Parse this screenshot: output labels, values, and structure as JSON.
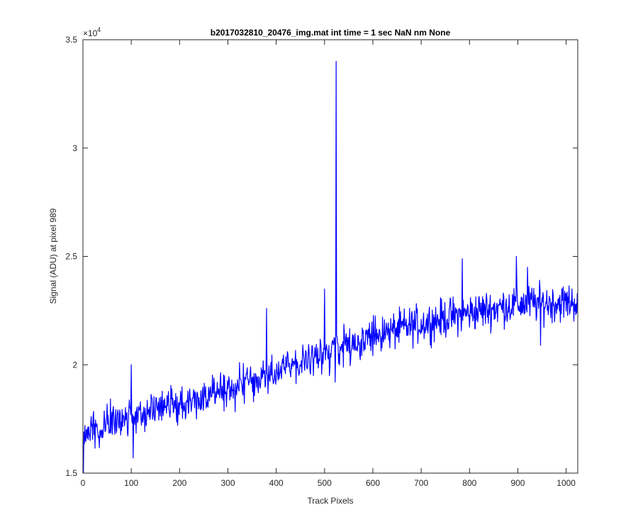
{
  "chart_data": {
    "type": "line",
    "title": "b2017032810_20476_img.mat int time = 1 sec  NaN nm None",
    "xlabel": "Track Pixels",
    "ylabel": "Signal (ADU) at pixel 989",
    "xlim": [
      0,
      1024
    ],
    "ylim": [
      15000,
      35000
    ],
    "x_ticks": [
      0,
      100,
      200,
      300,
      400,
      500,
      600,
      700,
      800,
      900,
      1000
    ],
    "y_ticks": [
      15000,
      20000,
      25000,
      30000,
      35000
    ],
    "y_tick_labels": [
      "1.5",
      "2",
      "2.5",
      "3",
      "3.5"
    ],
    "y_exponent_label": "×10",
    "y_exponent_power": "4",
    "series_color": "#0000ff",
    "grid": false,
    "series": [
      {
        "x_start": 1,
        "x_step": 1,
        "points_count": 1024,
        "trend_anchors_x": [
          1,
          100,
          200,
          300,
          400,
          500,
          600,
          700,
          800,
          900,
          1024
        ],
        "trend_anchors_y": [
          16900,
          17700,
          18200,
          18900,
          19600,
          20600,
          21300,
          21900,
          22400,
          22800,
          22900
        ],
        "noise_amplitude": 1300,
        "notable_points": [
          {
            "x": 1,
            "y": 15000
          },
          {
            "x": 100,
            "y": 20000
          },
          {
            "x": 104,
            "y": 15700
          },
          {
            "x": 380,
            "y": 22600
          },
          {
            "x": 500,
            "y": 23500
          },
          {
            "x": 510,
            "y": 19500
          },
          {
            "x": 522,
            "y": 19200
          },
          {
            "x": 524,
            "y": 34000
          },
          {
            "x": 526,
            "y": 21300
          },
          {
            "x": 785,
            "y": 24900
          },
          {
            "x": 897,
            "y": 25000
          },
          {
            "x": 920,
            "y": 24500
          },
          {
            "x": 947,
            "y": 20900
          }
        ]
      }
    ]
  }
}
